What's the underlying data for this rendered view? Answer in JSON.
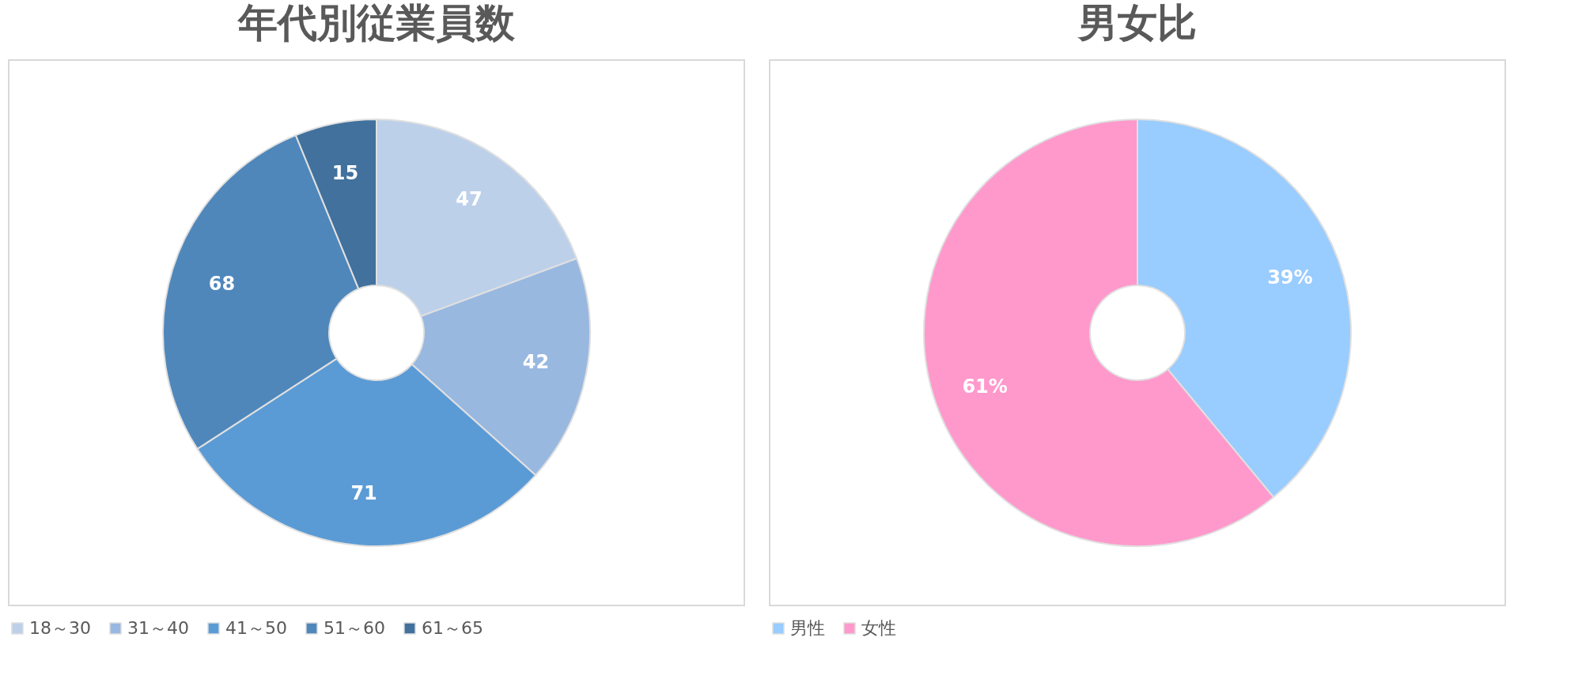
{
  "chart_data": [
    {
      "type": "donut",
      "title": "年代別従業員数",
      "categories": [
        "18～30",
        "31～40",
        "41～50",
        "51～60",
        "61～65"
      ],
      "values": [
        47,
        42,
        71,
        68,
        15
      ],
      "colors": [
        "#bdd0ea",
        "#98b8e0",
        "#5b9bd5",
        "#4f87bb",
        "#41719c"
      ],
      "data_labels": true,
      "legend": "bottom"
    },
    {
      "type": "donut",
      "title": "男女比",
      "categories": [
        "男性",
        "女性"
      ],
      "values": [
        39,
        61
      ],
      "colors": [
        "#99ccff",
        "#ff99cc"
      ],
      "value_labels": [
        "39%",
        "61%"
      ],
      "legend": "bottom"
    }
  ]
}
